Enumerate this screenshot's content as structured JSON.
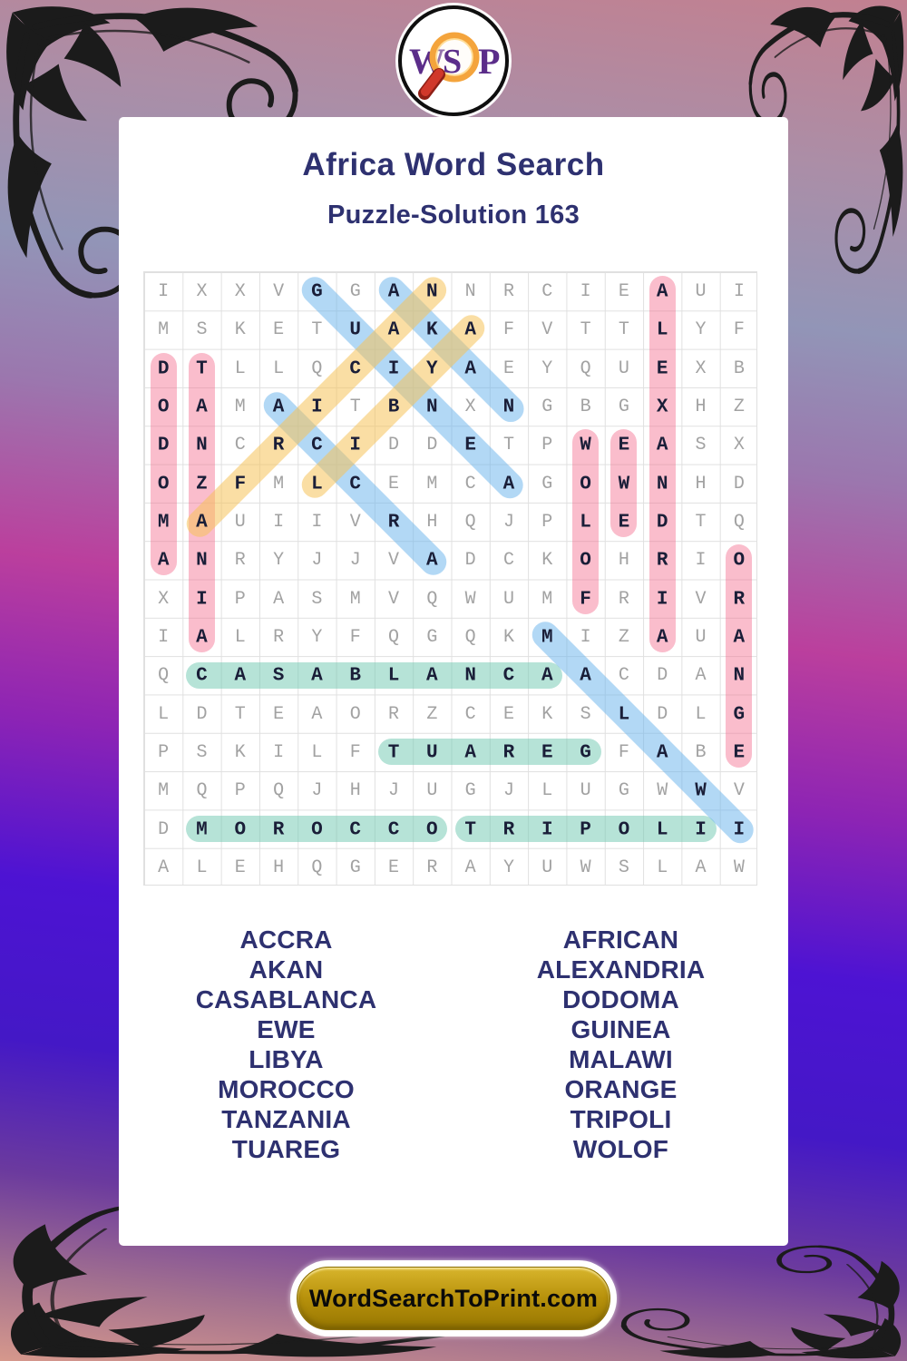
{
  "header": {
    "title": "Africa Word Search",
    "subtitle": "Puzzle-Solution 163"
  },
  "logo": {
    "letters": [
      "W",
      "S",
      "P"
    ]
  },
  "grid": {
    "size": 16,
    "rows": [
      "IXXVGGANNRCIEAUI",
      "MSKETUAKAFVTTLYF",
      "DTLLQCIYAEYQUEXB",
      "OAMAITBNXNGBGXHZ",
      "DNCRCIDDETPWEASX",
      "OZFMLCEMCAGOWNHD",
      "MAUIIVRHQJPLEDTQ",
      "ANRYJJVADCKOHRIO",
      "XIPASMVQWUMFRIVR",
      "IALRYFQGQKMIZAUA",
      "QCASABLANCAACDAN",
      "LDTEAORZCEKSLDLG",
      "PSKILFTUAREGFABE",
      "MQPQJHJUGJLUGWWV",
      "DMOROCCOTRIPOLII",
      "ALEHQGERAYUWSLAW"
    ],
    "solutions": [
      {
        "word": "DODOMA",
        "row": 3,
        "col": 1,
        "dir": "v",
        "color": "pink"
      },
      {
        "word": "TANZANIA",
        "row": 3,
        "col": 2,
        "dir": "v",
        "color": "pink"
      },
      {
        "word": "ALEXANDRIA",
        "row": 1,
        "col": 14,
        "dir": "v",
        "color": "pink"
      },
      {
        "word": "WOLOF",
        "row": 5,
        "col": 12,
        "dir": "v",
        "color": "pink"
      },
      {
        "word": "EWE",
        "row": 5,
        "col": 13,
        "dir": "v",
        "color": "pink"
      },
      {
        "word": "ORANGE",
        "row": 8,
        "col": 16,
        "dir": "v",
        "color": "pink"
      },
      {
        "word": "CASABLANCA",
        "row": 11,
        "col": 2,
        "dir": "h",
        "color": "teal"
      },
      {
        "word": "TUAREG",
        "row": 13,
        "col": 7,
        "dir": "h",
        "color": "teal"
      },
      {
        "word": "MOROCCO",
        "row": 15,
        "col": 2,
        "dir": "h",
        "color": "teal"
      },
      {
        "word": "TRIPOLI",
        "row": 15,
        "col": 9,
        "dir": "h",
        "color": "teal"
      },
      {
        "word": "GUINEA",
        "row": 1,
        "col": 5,
        "dir": "dr",
        "color": "blue"
      },
      {
        "word": "AKAN",
        "row": 1,
        "col": 7,
        "dir": "dr",
        "color": "blue"
      },
      {
        "word": "ACCRA",
        "row": 4,
        "col": 4,
        "dir": "dr",
        "color": "blue"
      },
      {
        "word": "MALAWI",
        "row": 10,
        "col": 11,
        "dir": "dr",
        "color": "blue"
      },
      {
        "word": "AFRICAN",
        "row": 7,
        "col": 2,
        "dir": "ur",
        "color": "yellow"
      },
      {
        "word": "LIBYA",
        "row": 6,
        "col": 5,
        "dir": "ur",
        "color": "yellow"
      }
    ]
  },
  "word_list": {
    "left": [
      "ACCRA",
      "AKAN",
      "CASABLANCA",
      "EWE",
      "LIBYA",
      "MOROCCO",
      "TANZANIA",
      "TUAREG"
    ],
    "right": [
      "AFRICAN",
      "ALEXANDRIA",
      "DODOMA",
      "GUINEA",
      "MALAWI",
      "ORANGE",
      "TRIPOLI",
      "WOLOF"
    ]
  },
  "footer": {
    "button_label": "WordSearchToPrint.com"
  },
  "colors": {
    "highlight_pink": "rgba(243,108,142,0.45)",
    "highlight_teal": "rgba(110,200,175,0.50)",
    "highlight_blue": "rgba(108,180,235,0.52)",
    "highlight_yellow": "rgba(245,195,90,0.55)",
    "title_navy": "#2e3170",
    "letter_gray": "#a2a2a2",
    "letter_dark": "#1a1e38",
    "grid_line": "#e0e0e0",
    "logo_purple": "#5b2d8a",
    "button_gold": "#b8920c",
    "flourish_black": "#1b1b1b"
  }
}
